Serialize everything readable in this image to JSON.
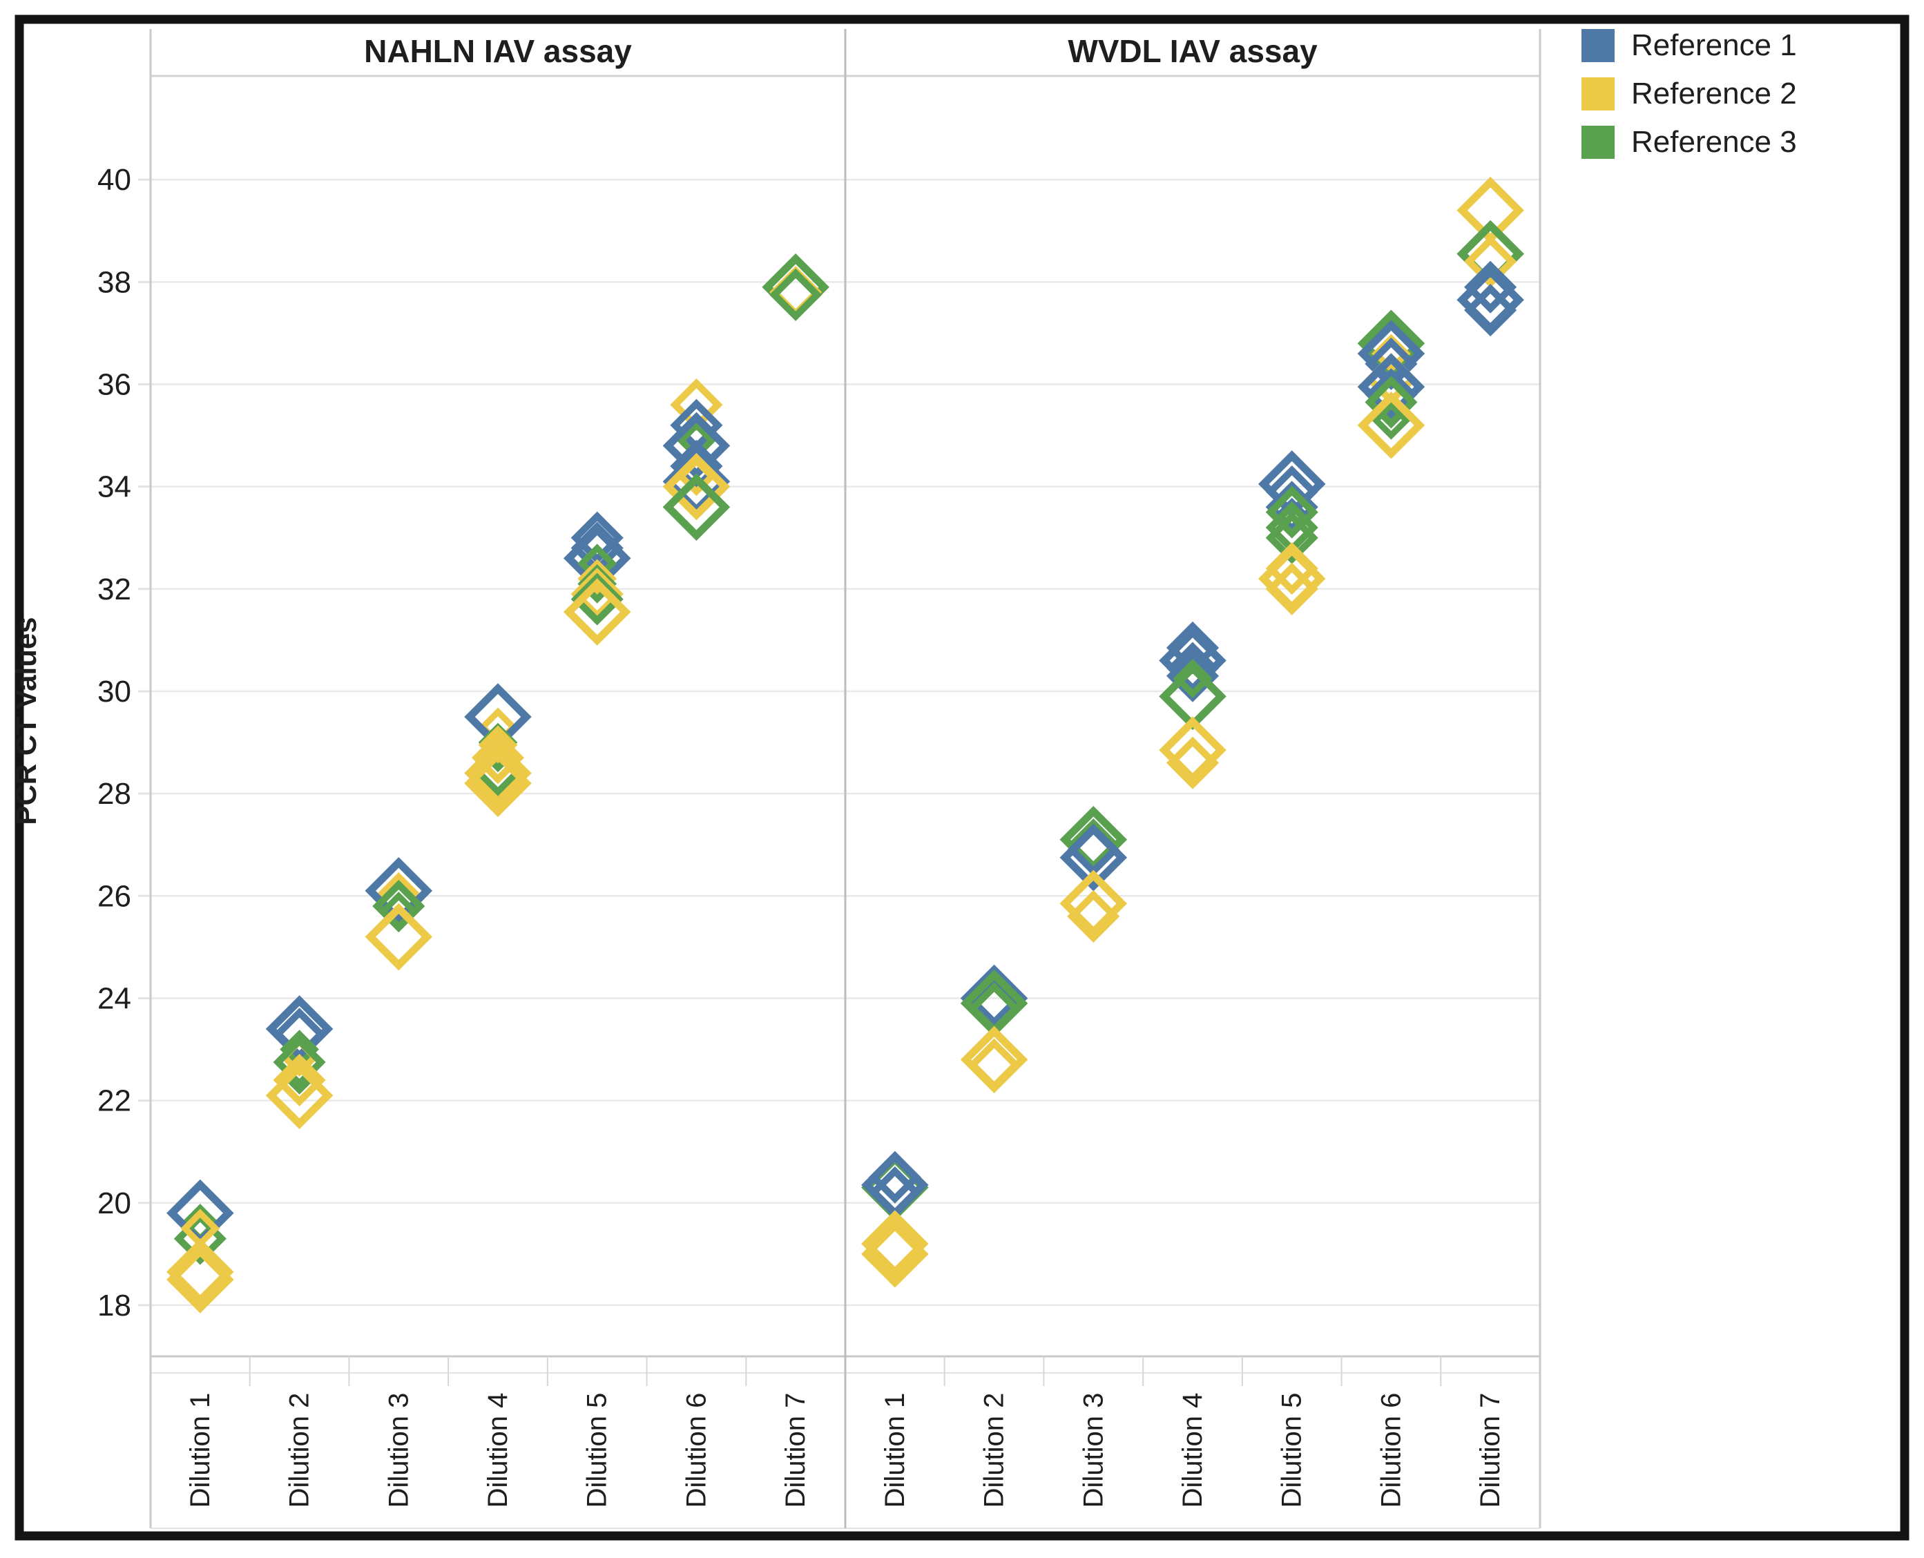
{
  "chart_data": {
    "type": "scatter",
    "marker": "open-diamond",
    "ylabel": "PCR CT Values",
    "ylim": [
      17,
      42
    ],
    "yticks": [
      18,
      20,
      22,
      24,
      26,
      28,
      30,
      32,
      34,
      36,
      38,
      40
    ],
    "grid": true,
    "categories": [
      "Dilution 1",
      "Dilution 2",
      "Dilution 3",
      "Dilution 4",
      "Dilution 5",
      "Dilution 6",
      "Dilution 7"
    ],
    "panels": [
      {
        "title": "NAHLN IAV assay"
      },
      {
        "title": "WVDL IAV assay"
      }
    ],
    "legend": {
      "position": "top-right",
      "items": [
        {
          "label": "Reference 1",
          "color": "#4e79a7"
        },
        {
          "label": "Reference 2",
          "color": "#edc948"
        },
        {
          "label": "Reference 3",
          "color": "#59a14f"
        }
      ]
    },
    "points": [
      {
        "p": 0,
        "d": 0,
        "r": 3,
        "v": 19.6,
        "s": "S"
      },
      {
        "p": 0,
        "d": 0,
        "r": 1,
        "v": 19.8,
        "s": "L"
      },
      {
        "p": 0,
        "d": 0,
        "r": 3,
        "v": 19.3,
        "s": "M"
      },
      {
        "p": 0,
        "d": 0,
        "r": 2,
        "v": 19.5,
        "s": "S"
      },
      {
        "p": 0,
        "d": 0,
        "r": 2,
        "v": 18.65,
        "s": "L"
      },
      {
        "p": 0,
        "d": 0,
        "r": 2,
        "v": 18.5,
        "s": "L"
      },
      {
        "p": 0,
        "d": 1,
        "r": 1,
        "v": 23.3,
        "s": "M"
      },
      {
        "p": 0,
        "d": 1,
        "r": 1,
        "v": 23.4,
        "s": "L"
      },
      {
        "p": 0,
        "d": 1,
        "r": 3,
        "v": 23.0,
        "s": "S"
      },
      {
        "p": 0,
        "d": 1,
        "r": 2,
        "v": 22.85,
        "s": "S"
      },
      {
        "p": 0,
        "d": 1,
        "r": 3,
        "v": 22.75,
        "s": "M"
      },
      {
        "p": 0,
        "d": 1,
        "r": 3,
        "v": 22.5,
        "s": "S"
      },
      {
        "p": 0,
        "d": 1,
        "r": 2,
        "v": 22.4,
        "s": "M"
      },
      {
        "p": 0,
        "d": 1,
        "r": 2,
        "v": 22.1,
        "s": "L"
      },
      {
        "p": 0,
        "d": 2,
        "r": 2,
        "v": 25.95,
        "s": "M"
      },
      {
        "p": 0,
        "d": 2,
        "r": 1,
        "v": 26.1,
        "s": "L"
      },
      {
        "p": 0,
        "d": 2,
        "r": 3,
        "v": 25.8,
        "s": "M"
      },
      {
        "p": 0,
        "d": 2,
        "r": 3,
        "v": 25.7,
        "s": "S"
      },
      {
        "p": 0,
        "d": 2,
        "r": 2,
        "v": 25.2,
        "s": "L"
      },
      {
        "p": 0,
        "d": 3,
        "r": 2,
        "v": 29.3,
        "s": "S"
      },
      {
        "p": 0,
        "d": 3,
        "r": 1,
        "v": 29.5,
        "s": "L"
      },
      {
        "p": 0,
        "d": 3,
        "r": 3,
        "v": 29.0,
        "s": "S"
      },
      {
        "p": 0,
        "d": 3,
        "r": 2,
        "v": 28.95,
        "s": "S"
      },
      {
        "p": 0,
        "d": 3,
        "r": 3,
        "v": 28.8,
        "s": "S"
      },
      {
        "p": 0,
        "d": 3,
        "r": 2,
        "v": 28.7,
        "s": "M"
      },
      {
        "p": 0,
        "d": 3,
        "r": 3,
        "v": 28.45,
        "s": "M"
      },
      {
        "p": 0,
        "d": 3,
        "r": 2,
        "v": 28.4,
        "s": "L"
      },
      {
        "p": 0,
        "d": 3,
        "r": 2,
        "v": 28.2,
        "s": "L"
      },
      {
        "p": 0,
        "d": 4,
        "r": 1,
        "v": 33.0,
        "s": "M"
      },
      {
        "p": 0,
        "d": 4,
        "r": 1,
        "v": 32.8,
        "s": "M"
      },
      {
        "p": 0,
        "d": 4,
        "r": 1,
        "v": 32.6,
        "s": "L"
      },
      {
        "p": 0,
        "d": 4,
        "r": 3,
        "v": 32.5,
        "s": "S"
      },
      {
        "p": 0,
        "d": 4,
        "r": 2,
        "v": 32.2,
        "s": "S"
      },
      {
        "p": 0,
        "d": 4,
        "r": 3,
        "v": 32.1,
        "s": "S"
      },
      {
        "p": 0,
        "d": 4,
        "r": 2,
        "v": 31.9,
        "s": "M"
      },
      {
        "p": 0,
        "d": 4,
        "r": 3,
        "v": 31.8,
        "s": "M"
      },
      {
        "p": 0,
        "d": 4,
        "r": 2,
        "v": 31.55,
        "s": "L"
      },
      {
        "p": 0,
        "d": 5,
        "r": 2,
        "v": 35.6,
        "s": "M"
      },
      {
        "p": 0,
        "d": 5,
        "r": 1,
        "v": 35.2,
        "s": "M"
      },
      {
        "p": 0,
        "d": 5,
        "r": 3,
        "v": 34.9,
        "s": "S"
      },
      {
        "p": 0,
        "d": 5,
        "r": 1,
        "v": 34.8,
        "s": "L"
      },
      {
        "p": 0,
        "d": 5,
        "r": 1,
        "v": 34.4,
        "s": "M"
      },
      {
        "p": 0,
        "d": 5,
        "r": 2,
        "v": 34.2,
        "s": "S"
      },
      {
        "p": 0,
        "d": 5,
        "r": 1,
        "v": 34.1,
        "s": "L"
      },
      {
        "p": 0,
        "d": 5,
        "r": 2,
        "v": 34.0,
        "s": "L"
      },
      {
        "p": 0,
        "d": 5,
        "r": 3,
        "v": 33.6,
        "s": "L"
      },
      {
        "p": 0,
        "d": 6,
        "r": 3,
        "v": 37.9,
        "s": "L"
      },
      {
        "p": 0,
        "d": 6,
        "r": 2,
        "v": 37.8,
        "s": "M"
      },
      {
        "p": 0,
        "d": 6,
        "r": 3,
        "v": 37.75,
        "s": "M"
      },
      {
        "p": 1,
        "d": 0,
        "r": 3,
        "v": 20.3,
        "s": "L"
      },
      {
        "p": 1,
        "d": 0,
        "r": 1,
        "v": 20.5,
        "s": "M"
      },
      {
        "p": 1,
        "d": 0,
        "r": 1,
        "v": 20.35,
        "s": "L"
      },
      {
        "p": 1,
        "d": 0,
        "r": 1,
        "v": 20.2,
        "s": "M"
      },
      {
        "p": 1,
        "d": 0,
        "r": 2,
        "v": 19.2,
        "s": "L"
      },
      {
        "p": 1,
        "d": 0,
        "r": 2,
        "v": 19.0,
        "s": "L"
      },
      {
        "p": 1,
        "d": 1,
        "r": 1,
        "v": 23.95,
        "s": "M"
      },
      {
        "p": 1,
        "d": 1,
        "r": 1,
        "v": 24.0,
        "s": "L"
      },
      {
        "p": 1,
        "d": 1,
        "r": 3,
        "v": 23.9,
        "s": "L"
      },
      {
        "p": 1,
        "d": 1,
        "r": 3,
        "v": 23.8,
        "s": "M"
      },
      {
        "p": 1,
        "d": 1,
        "r": 2,
        "v": 22.7,
        "s": "M"
      },
      {
        "p": 1,
        "d": 1,
        "r": 2,
        "v": 22.8,
        "s": "L"
      },
      {
        "p": 1,
        "d": 2,
        "r": 3,
        "v": 27.1,
        "s": "L"
      },
      {
        "p": 1,
        "d": 2,
        "r": 3,
        "v": 27.0,
        "s": "M"
      },
      {
        "p": 1,
        "d": 2,
        "r": 1,
        "v": 26.9,
        "s": "M"
      },
      {
        "p": 1,
        "d": 2,
        "r": 1,
        "v": 26.75,
        "s": "L"
      },
      {
        "p": 1,
        "d": 2,
        "r": 2,
        "v": 25.85,
        "s": "L"
      },
      {
        "p": 1,
        "d": 2,
        "r": 2,
        "v": 25.6,
        "s": "M"
      },
      {
        "p": 1,
        "d": 3,
        "r": 1,
        "v": 30.85,
        "s": "M"
      },
      {
        "p": 1,
        "d": 3,
        "r": 1,
        "v": 30.6,
        "s": "L"
      },
      {
        "p": 1,
        "d": 3,
        "r": 1,
        "v": 30.45,
        "s": "M"
      },
      {
        "p": 1,
        "d": 3,
        "r": 1,
        "v": 30.3,
        "s": "M"
      },
      {
        "p": 1,
        "d": 3,
        "r": 3,
        "v": 30.25,
        "s": "S"
      },
      {
        "p": 1,
        "d": 3,
        "r": 3,
        "v": 29.9,
        "s": "L"
      },
      {
        "p": 1,
        "d": 3,
        "r": 2,
        "v": 28.85,
        "s": "L"
      },
      {
        "p": 1,
        "d": 3,
        "r": 2,
        "v": 28.6,
        "s": "M"
      },
      {
        "p": 1,
        "d": 4,
        "r": 1,
        "v": 34.05,
        "s": "L"
      },
      {
        "p": 1,
        "d": 4,
        "r": 1,
        "v": 33.9,
        "s": "M"
      },
      {
        "p": 1,
        "d": 4,
        "r": 1,
        "v": 33.6,
        "s": "M"
      },
      {
        "p": 1,
        "d": 4,
        "r": 1,
        "v": 33.4,
        "s": "S"
      },
      {
        "p": 1,
        "d": 4,
        "r": 3,
        "v": 33.5,
        "s": "M"
      },
      {
        "p": 1,
        "d": 4,
        "r": 3,
        "v": 33.2,
        "s": "M"
      },
      {
        "p": 1,
        "d": 4,
        "r": 3,
        "v": 33.0,
        "s": "M"
      },
      {
        "p": 1,
        "d": 4,
        "r": 2,
        "v": 32.4,
        "s": "M"
      },
      {
        "p": 1,
        "d": 4,
        "r": 2,
        "v": 32.2,
        "s": "L"
      },
      {
        "p": 1,
        "d": 4,
        "r": 2,
        "v": 32.0,
        "s": "M"
      },
      {
        "p": 1,
        "d": 5,
        "r": 3,
        "v": 36.8,
        "s": "L"
      },
      {
        "p": 1,
        "d": 5,
        "r": 2,
        "v": 36.6,
        "s": "S"
      },
      {
        "p": 1,
        "d": 5,
        "r": 1,
        "v": 36.6,
        "s": "L"
      },
      {
        "p": 1,
        "d": 5,
        "r": 1,
        "v": 36.4,
        "s": "M"
      },
      {
        "p": 1,
        "d": 5,
        "r": 2,
        "v": 36.1,
        "s": "M"
      },
      {
        "p": 1,
        "d": 5,
        "r": 1,
        "v": 35.95,
        "s": "L"
      },
      {
        "p": 1,
        "d": 5,
        "r": 1,
        "v": 35.8,
        "s": "M"
      },
      {
        "p": 1,
        "d": 5,
        "r": 3,
        "v": 35.65,
        "s": "M"
      },
      {
        "p": 1,
        "d": 5,
        "r": 3,
        "v": 35.3,
        "s": "S"
      },
      {
        "p": 1,
        "d": 5,
        "r": 2,
        "v": 35.2,
        "s": "L"
      },
      {
        "p": 1,
        "d": 6,
        "r": 2,
        "v": 39.4,
        "s": "L"
      },
      {
        "p": 1,
        "d": 6,
        "r": 3,
        "v": 38.55,
        "s": "L"
      },
      {
        "p": 1,
        "d": 6,
        "r": 2,
        "v": 38.4,
        "s": "M"
      },
      {
        "p": 1,
        "d": 6,
        "r": 1,
        "v": 37.9,
        "s": "M"
      },
      {
        "p": 1,
        "d": 6,
        "r": 1,
        "v": 37.65,
        "s": "L"
      },
      {
        "p": 1,
        "d": 6,
        "r": 1,
        "v": 37.45,
        "s": "M"
      }
    ]
  }
}
